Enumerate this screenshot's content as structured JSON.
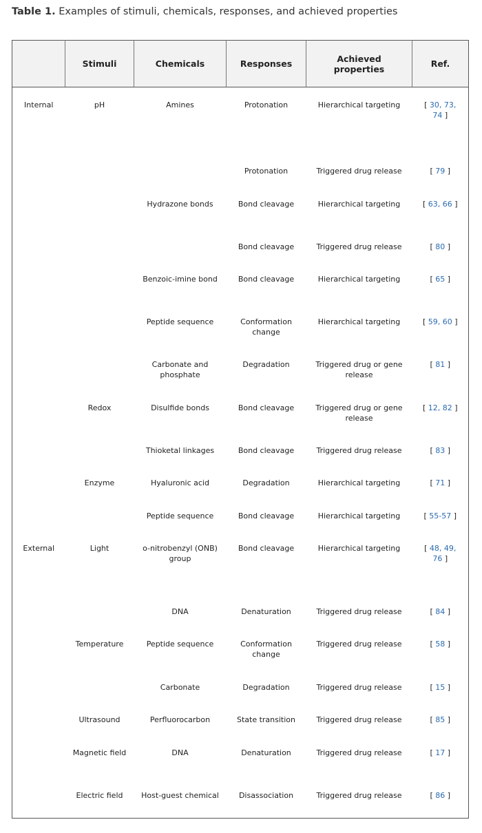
{
  "caption": {
    "label": "Table 1.",
    "text": "Examples of stimuli, chemicals, responses, and achieved properties"
  },
  "table": {
    "header": [
      null,
      "Stimuli",
      "Chemicals",
      "Responses",
      "Achieved properties",
      "Ref."
    ],
    "rows": [
      [
        "Internal",
        "pH",
        "Amines",
        "Protonation",
        "Hierarchical targeting",
        [
          "[",
          "30, 73, 74",
          "]"
        ]
      ],
      [
        null,
        null,
        null,
        "Protonation",
        "Triggered drug release",
        [
          "[",
          "79",
          "]"
        ]
      ],
      [
        null,
        null,
        "Hydrazone bonds",
        "Bond cleavage",
        "Hierarchical targeting",
        [
          "[",
          "63, 66",
          "]"
        ]
      ],
      [
        null,
        null,
        null,
        "Bond cleavage",
        "Triggered drug release",
        [
          "[",
          "80",
          "]"
        ]
      ],
      [
        null,
        null,
        "Benzoic-imine bond",
        "Bond cleavage",
        "Hierarchical targeting",
        [
          "[",
          "65",
          "]"
        ]
      ],
      [
        null,
        null,
        "Peptide sequence",
        "Conformation change",
        "Hierarchical targeting",
        [
          "[",
          "59, 60",
          "]"
        ]
      ],
      [
        null,
        null,
        "Carbonate and phosphate",
        "Degradation",
        "Triggered drug or gene release",
        [
          "[",
          "81",
          "]"
        ]
      ],
      [
        null,
        "Redox",
        "Disulfide bonds",
        "Bond cleavage",
        "Triggered drug or gene release",
        [
          "[",
          "12, 82",
          "]"
        ]
      ],
      [
        null,
        null,
        "Thioketal linkages",
        "Bond cleavage",
        "Triggered drug release",
        [
          "[",
          "83",
          "]"
        ]
      ],
      [
        null,
        "Enzyme",
        "Hyaluronic acid",
        "Degradation",
        "Hierarchical targeting",
        [
          "[",
          "71",
          "]"
        ]
      ],
      [
        null,
        null,
        "Peptide sequence",
        "Bond cleavage",
        "Hierarchical targeting",
        [
          "[",
          "55-57",
          "]"
        ]
      ],
      [
        "External",
        "Light",
        "o-nitrobenzyl (ONB) group",
        "Bond cleavage",
        "Hierarchical targeting",
        [
          "[",
          "48, 49, 76",
          "]"
        ]
      ],
      [
        null,
        null,
        "DNA",
        "Denaturation",
        "Triggered drug release",
        [
          "[",
          "84",
          "]"
        ]
      ],
      [
        null,
        "Temperature",
        "Peptide sequence",
        "Conformation change",
        "Triggered drug release",
        [
          "[",
          "58",
          "]"
        ]
      ],
      [
        null,
        null,
        "Carbonate",
        "Degradation",
        "Triggered drug release",
        [
          "[",
          "15",
          "]"
        ]
      ],
      [
        null,
        "Ultrasound",
        "Perfluorocarbon",
        "State transition",
        "Triggered drug release",
        [
          "[",
          "85",
          "]"
        ]
      ],
      [
        null,
        "Magnetic field",
        "DNA",
        "Denaturation",
        "Triggered drug release",
        [
          "[",
          "17",
          "]"
        ]
      ],
      [
        null,
        "Electric field",
        "Host-guest chemical",
        "Disassociation",
        "Triggered drug release",
        [
          "[",
          "86",
          "]"
        ]
      ]
    ]
  }
}
